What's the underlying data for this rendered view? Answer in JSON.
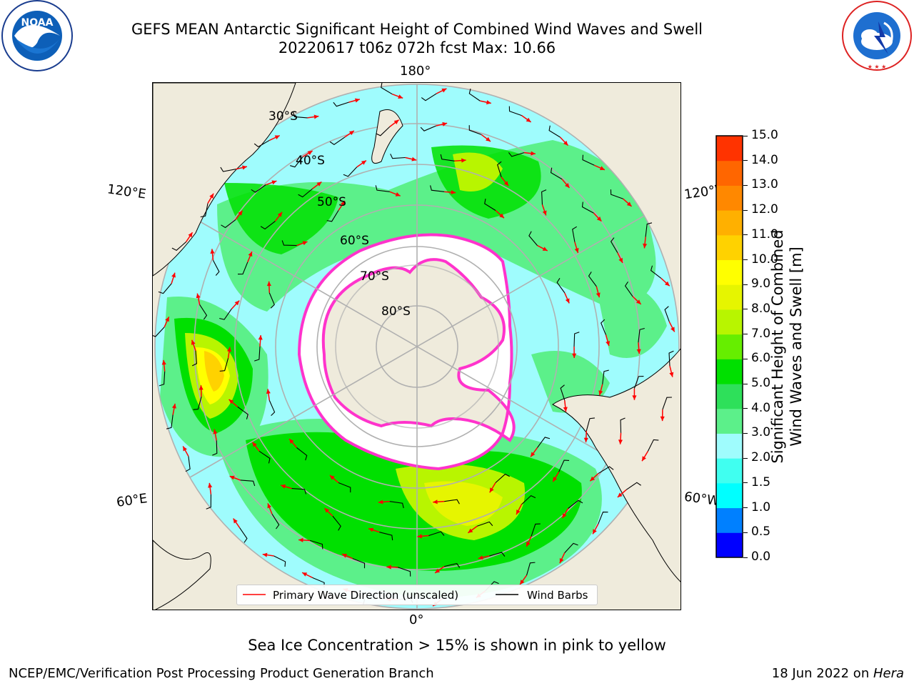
{
  "header": {
    "title_line1": "GEFS MEAN Antarctic Significant Height of Combined Wind Waves and Swell",
    "title_line2": "20220617 t06z 072h fcst   Max: 10.66"
  },
  "logos": {
    "noaa": {
      "text": "NOAA",
      "ring_text": "NATIONAL OCEANIC AND ATMOSPHERIC ADMINISTRATION · U.S. DEPARTMENT OF COMMERCE"
    },
    "nws": {
      "ring_text": "NATIONAL WEATHER SERVICE"
    }
  },
  "map": {
    "longitude_labels": {
      "top": "180°",
      "left_upper": "120°E",
      "right_upper": "120°W",
      "left_lower": "60°E",
      "right_lower": "60°W",
      "bottom": "0°"
    },
    "latitude_labels": [
      "30°S",
      "40°S",
      "50°S",
      "60°S",
      "70°S",
      "80°S"
    ],
    "colors": {
      "land": "#efebdc",
      "ocean_low": "#9ffcfd",
      "ice": "#ffffff",
      "ice_edge": "#ff33cc",
      "grid": "#b0b0b0",
      "arrow": "#ff0000",
      "barb": "#000000"
    }
  },
  "legend": {
    "primary_wave": "Primary Wave Direction (unscaled)",
    "wind_barbs": "Wind Barbs"
  },
  "colorbar": {
    "label_line1": "Significant Height of Combined",
    "label_line2": "Wind Waves and Swell [m]",
    "ticks": [
      "15.0",
      "14.0",
      "13.0",
      "12.0",
      "11.0",
      "10.0",
      "9.0",
      "8.0",
      "7.0",
      "6.0",
      "5.0",
      "4.0",
      "3.0",
      "2.0",
      "1.5",
      "1.0",
      "0.5",
      "0.0"
    ],
    "colors": [
      "#0000ff",
      "#0080ff",
      "#00ffff",
      "#40fff0",
      "#9ffcfd",
      "#5cf08a",
      "#2ee05a",
      "#00e000",
      "#66ee00",
      "#b8f500",
      "#e6f500",
      "#ffff00",
      "#ffd200",
      "#ffb000",
      "#ff8800",
      "#ff6600",
      "#ff3300",
      "#ff0000"
    ]
  },
  "notes": {
    "sea_ice": "Sea Ice Concentration > 15% is shown in pink to yellow"
  },
  "footer": {
    "left": "NCEP/EMC/Verification Post Processing Product Generation Branch",
    "right_date": "18 Jun 2022 on ",
    "right_host": "Hera"
  }
}
